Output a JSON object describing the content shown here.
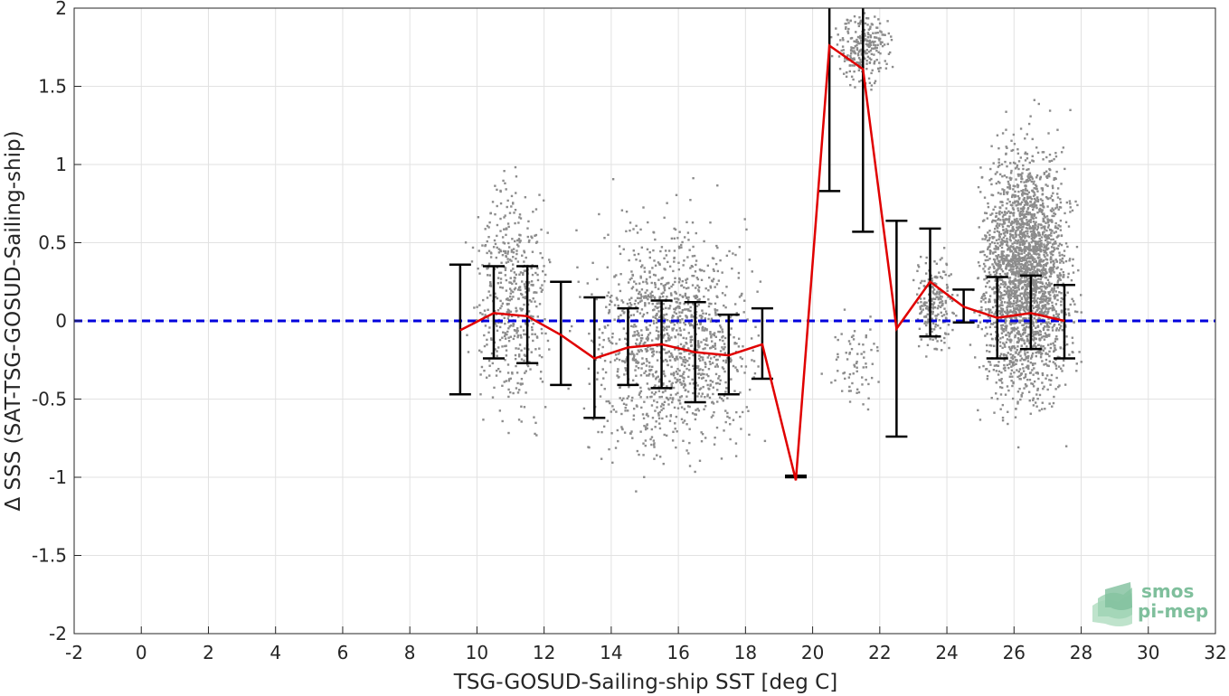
{
  "chart_data": {
    "type": "scatter",
    "xlabel": "TSG-GOSUD-Sailing-ship SST [deg C]",
    "ylabel": "Δ SSS (SAT-TSG-GOSUD-Sailing-ship)",
    "xlim": [
      -2,
      32
    ],
    "ylim": [
      -2,
      2
    ],
    "xticks": [
      -2,
      0,
      2,
      4,
      6,
      8,
      10,
      12,
      14,
      16,
      18,
      20,
      22,
      24,
      26,
      28,
      30,
      32
    ],
    "yticks": [
      -2,
      -1.5,
      -1,
      -0.5,
      0,
      0.5,
      1,
      1.5,
      2
    ],
    "grid": true,
    "reference_line": {
      "y": 0,
      "color": "#0000dd",
      "style": "dashed"
    },
    "series": [
      {
        "kind": "line",
        "color": "#e00000",
        "x": [
          9.5,
          10.5,
          11.5,
          12.5,
          13.5,
          14.5,
          15.5,
          16.5,
          17.5,
          18.5,
          19.5,
          20.5,
          21.5,
          22.5,
          23.5,
          24.5,
          25.5,
          26.5,
          27.5
        ],
        "y": [
          -0.06,
          0.05,
          0.03,
          -0.09,
          -0.24,
          -0.17,
          -0.15,
          -0.2,
          -0.22,
          -0.15,
          -1.02,
          1.76,
          1.61,
          -0.05,
          0.25,
          0.09,
          0.02,
          0.05,
          0.0
        ]
      },
      {
        "kind": "errorbar",
        "color": "#000000",
        "x": [
          9.5,
          10.5,
          11.5,
          12.5,
          13.5,
          14.5,
          15.5,
          16.5,
          17.5,
          18.5,
          19.5,
          20.5,
          21.5,
          22.5,
          23.5,
          24.5,
          25.5,
          26.5,
          27.5
        ],
        "low": [
          -0.47,
          -0.24,
          -0.27,
          -0.41,
          -0.62,
          -0.41,
          -0.43,
          -0.52,
          -0.47,
          -0.37,
          -1.0,
          0.83,
          0.57,
          -0.74,
          -0.1,
          -0.01,
          -0.24,
          -0.18,
          -0.24
        ],
        "high": [
          0.36,
          0.35,
          0.35,
          0.25,
          0.15,
          0.08,
          0.13,
          0.12,
          0.04,
          0.08,
          -0.99,
          2.0,
          2.0,
          0.64,
          0.59,
          0.2,
          0.28,
          0.29,
          0.23
        ]
      }
    ],
    "scatter_clusters": {
      "color": "#8c8c8c",
      "regions": [
        {
          "x": [
            9.5,
            12.5
          ],
          "y": [
            -0.7,
            1.0
          ],
          "n": 500
        },
        {
          "x": [
            12.5,
            19.0
          ],
          "y": [
            -0.95,
            0.75
          ],
          "n": 1300
        },
        {
          "x": [
            20.5,
            22.5
          ],
          "y": [
            1.5,
            2.0
          ],
          "n": 260
        },
        {
          "x": [
            20.0,
            22.5
          ],
          "y": [
            -0.65,
            0.15
          ],
          "n": 70
        },
        {
          "x": [
            22.8,
            24.5
          ],
          "y": [
            -0.25,
            0.5
          ],
          "n": 200
        },
        {
          "x": [
            24.5,
            28.2
          ],
          "y": [
            -0.6,
            1.2
          ],
          "n": 2600
        }
      ]
    }
  },
  "logo": {
    "line1": "smos",
    "line2": "pi-mep"
  }
}
